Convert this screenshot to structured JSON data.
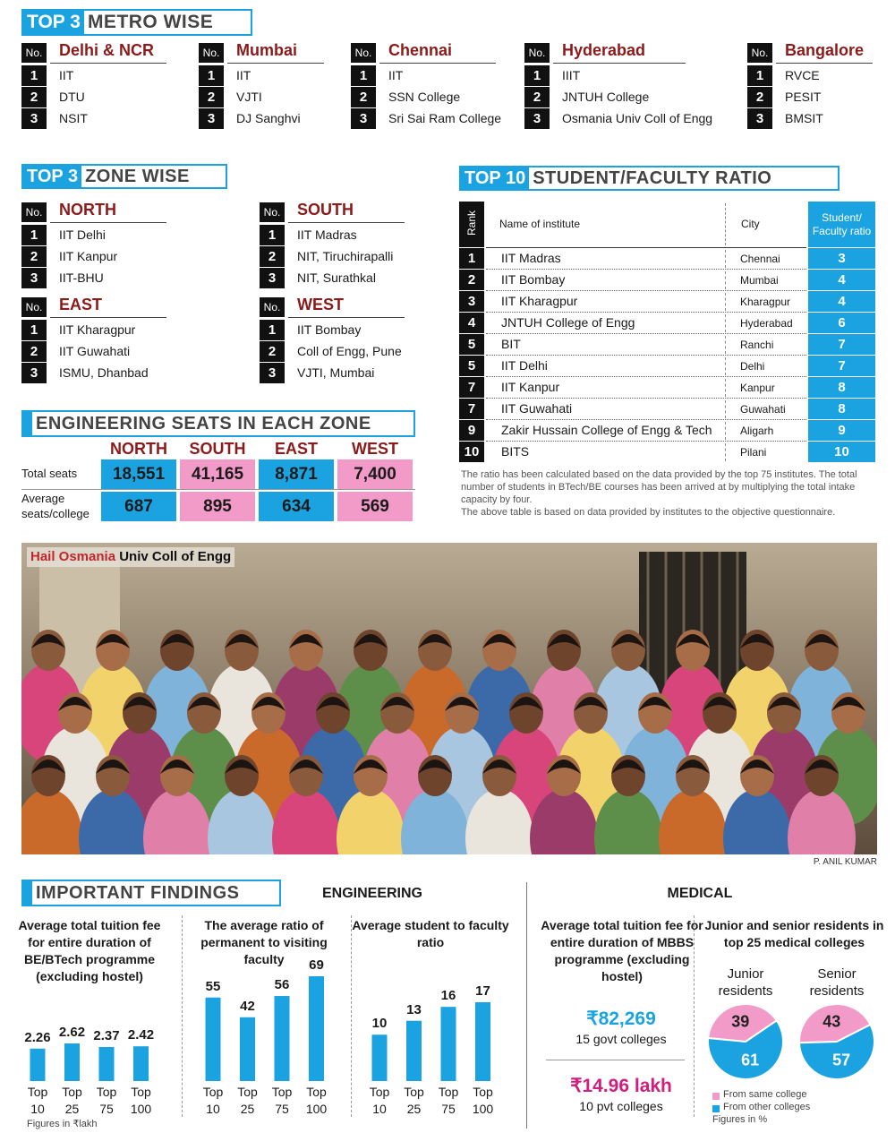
{
  "metro": {
    "title_a": "TOP 3",
    "title_b": "METRO WISE",
    "no_header": "No.",
    "lists": [
      {
        "city": "Delhi & NCR",
        "rows": [
          [
            "1",
            "IIT"
          ],
          [
            "2",
            "DTU"
          ],
          [
            "3",
            "NSIT"
          ]
        ]
      },
      {
        "city": "Mumbai",
        "rows": [
          [
            "1",
            "IIT"
          ],
          [
            "2",
            "VJTI"
          ],
          [
            "3",
            "DJ Sanghvi"
          ]
        ]
      },
      {
        "city": "Chennai",
        "rows": [
          [
            "1",
            "IIT"
          ],
          [
            "2",
            "SSN College"
          ],
          [
            "3",
            "Sri Sai Ram College"
          ]
        ]
      },
      {
        "city": "Hyderabad",
        "rows": [
          [
            "1",
            "IIIT"
          ],
          [
            "2",
            "JNTUH College"
          ],
          [
            "3",
            "Osmania Univ Coll of Engg"
          ]
        ]
      },
      {
        "city": "Bangalore",
        "rows": [
          [
            "1",
            "RVCE"
          ],
          [
            "2",
            "PESIT"
          ],
          [
            "3",
            "BMSIT"
          ]
        ]
      }
    ]
  },
  "zone": {
    "title_a": "TOP 3",
    "title_b": "ZONE WISE",
    "no_header": "No.",
    "lists": [
      {
        "zone": "NORTH",
        "rows": [
          [
            "1",
            "IIT Delhi"
          ],
          [
            "2",
            "IIT Kanpur"
          ],
          [
            "3",
            "IIT-BHU"
          ]
        ]
      },
      {
        "zone": "SOUTH",
        "rows": [
          [
            "1",
            "IIT Madras"
          ],
          [
            "2",
            "NIT, Tiruchirapalli"
          ],
          [
            "3",
            "NIT, Surathkal"
          ]
        ]
      },
      {
        "zone": "EAST",
        "rows": [
          [
            "1",
            "IIT Kharagpur"
          ],
          [
            "2",
            "IIT Guwahati"
          ],
          [
            "3",
            "ISMU, Dhanbad"
          ]
        ]
      },
      {
        "zone": "WEST",
        "rows": [
          [
            "1",
            "IIT Bombay"
          ],
          [
            "2",
            "Coll of Engg, Pune"
          ],
          [
            "3",
            "VJTI, Mumbai"
          ]
        ]
      }
    ]
  },
  "ratio": {
    "title_a": "TOP 10",
    "title_b": "STUDENT/FACULTY RATIO",
    "columns": [
      "Rank",
      "Name of institute",
      "City",
      "Student/ Faculty ratio"
    ],
    "rows": [
      [
        "1",
        "IIT Madras",
        "Chennai",
        3
      ],
      [
        "2",
        "IIT Bombay",
        "Mumbai",
        4
      ],
      [
        "3",
        "IIT Kharagpur",
        "Kharagpur",
        4
      ],
      [
        "4",
        "JNTUH College of Engg",
        "Hyderabad",
        6
      ],
      [
        "5",
        "BIT",
        "Ranchi",
        7
      ],
      [
        "5",
        "IIT Delhi",
        "Delhi",
        7
      ],
      [
        "7",
        "IIT Kanpur",
        "Kanpur",
        8
      ],
      [
        "7",
        "IIT Guwahati",
        "Guwahati",
        8
      ],
      [
        "9",
        "Zakir Hussain College of Engg & Tech",
        "Aligarh",
        9
      ],
      [
        "10",
        "BITS",
        "Pilani",
        10
      ]
    ],
    "notes": [
      "The ratio has been calculated based on the data provided by the top 75 institutes. The total number of students in BTech/BE courses has been arrived at by multiplying the total intake capacity by four.",
      "The above table is based on data provided by institutes to the objective questionnaire."
    ]
  },
  "seats": {
    "title": "ENGINEERING SEATS IN EACH ZONE",
    "zones": [
      "NORTH",
      "SOUTH",
      "EAST",
      "WEST"
    ],
    "row_labels": [
      "Total seats",
      "Average seats/college"
    ],
    "total": [
      18551,
      41165,
      8871,
      7400
    ],
    "total_labels": [
      "18,551",
      "41,165",
      "8,871",
      "7,400"
    ],
    "average": [
      687,
      895,
      634,
      569
    ]
  },
  "photo": {
    "caption_a": "Hail Osmania",
    "caption_b": "Univ Coll of Engg",
    "credit": "P. ANIL KUMAR"
  },
  "findings": {
    "title": "IMPORTANT FINDINGS",
    "engineering": "ENGINEERING",
    "medical": "MEDICAL",
    "charts": [
      {
        "type": "bar",
        "title": "Average total tuition fee for entire duration of BE/BTech programme (excluding hostel)",
        "categories": [
          "Top 10",
          "Top 25",
          "Top 75",
          "Top 100"
        ],
        "values": [
          2.26,
          2.62,
          2.37,
          2.42
        ],
        "color": "#1aa3e0",
        "note": "Figures in ₹lakh"
      },
      {
        "type": "bar",
        "title": "The average ratio of permanent to visiting faculty",
        "categories": [
          "Top 10",
          "Top 25",
          "Top 75",
          "Top 100"
        ],
        "values": [
          55,
          42,
          56,
          69
        ],
        "color": "#1aa3e0"
      },
      {
        "type": "bar",
        "title": "Average student to faculty ratio",
        "categories": [
          "Top 10",
          "Top 25",
          "Top 75",
          "Top 100"
        ],
        "values": [
          10,
          13,
          16,
          17
        ],
        "color": "#1aa3e0"
      }
    ],
    "fee": {
      "title": "Average total tuition fee for entire duration of MBBS programme (excluding hostel)",
      "govt": {
        "amount": "₹82,269",
        "label": "15 govt colleges"
      },
      "pvt": {
        "amount": "₹14.96 lakh",
        "label": "10 pvt colleges"
      }
    },
    "residents": {
      "title": "Junior and senior residents in top 25 medical colleges",
      "pies": [
        {
          "type": "pie",
          "name": "Junior residents",
          "values": [
            39,
            61
          ]
        },
        {
          "type": "pie",
          "name": "Senior residents",
          "values": [
            43,
            57
          ]
        }
      ],
      "legend": [
        "From same college",
        "From other colleges"
      ],
      "colors": [
        "#f29ac8",
        "#1aa3e0"
      ],
      "note": "Figures in %"
    }
  }
}
